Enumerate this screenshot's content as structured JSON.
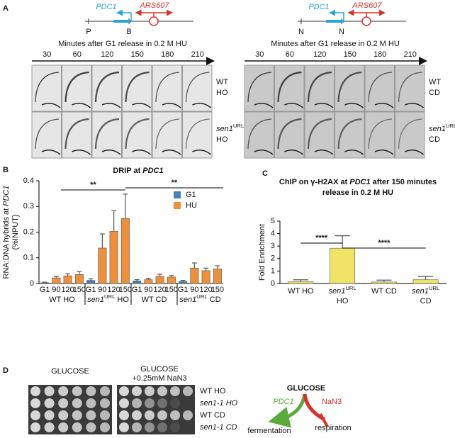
{
  "panel_a": {
    "label": "A",
    "gene": "PDC1",
    "origin": "ARS607",
    "axis_title": "Minutes after G1 release in 0.2 M HU",
    "times": [
      30,
      60,
      120,
      150,
      180,
      210
    ],
    "left": {
      "markers": [
        "P",
        "B"
      ],
      "rows": [
        [
          [
            "WT"
          ],
          [
            "HO"
          ]
        ],
        [
          [
            {
              "italic": "sen1"
            },
            {
              "sup": "URL"
            }
          ],
          [
            "HO"
          ]
        ]
      ]
    },
    "right": {
      "markers": [
        "N",
        "N"
      ],
      "rows": [
        [
          [
            "WT"
          ],
          [
            "CD"
          ]
        ],
        [
          [
            {
              "italic": "sen1"
            },
            {
              "sup": "URL"
            }
          ],
          [
            "CD"
          ]
        ]
      ]
    }
  },
  "chart_data": [
    {
      "type": "bar",
      "panel": "B",
      "title": [
        "DRIP  at",
        {
          "italic": "PDC1"
        }
      ],
      "y_label": [
        [
          "RNA:DNA hybrids at",
          {
            "italic": "PDC1"
          }
        ],
        [
          "(%INPUT)"
        ]
      ],
      "categories": [
        "G1",
        "90",
        "120",
        "150",
        "G1",
        "90",
        "120",
        "150",
        "G1",
        "90",
        "120",
        "150",
        "G1",
        "90",
        "120",
        "150"
      ],
      "groups": [
        "WT HO",
        [
          {
            "italic": "sen1"
          },
          {
            "sup": "URL"
          },
          "HO"
        ],
        "WT CD",
        [
          {
            "italic": "sen1"
          },
          {
            "sup": "URL"
          },
          "CD"
        ]
      ],
      "series": [
        {
          "name": "G1",
          "color": "#4a7fb5",
          "values": [
            0.003,
            null,
            null,
            null,
            0.012,
            null,
            null,
            null,
            0.01,
            null,
            null,
            null,
            0.008,
            null,
            null,
            null
          ],
          "errors": [
            0.002,
            null,
            null,
            null,
            0.006,
            null,
            null,
            null,
            0.005,
            null,
            null,
            null,
            0.004,
            null,
            null,
            null
          ]
        },
        {
          "name": "HU",
          "color": "#ee8f3a",
          "values": [
            null,
            0.022,
            0.03,
            0.035,
            null,
            0.138,
            0.203,
            0.253,
            null,
            0.015,
            0.028,
            0.025,
            null,
            0.06,
            0.05,
            0.057
          ],
          "errors": [
            null,
            0.006,
            0.008,
            0.012,
            null,
            0.055,
            0.08,
            0.095,
            null,
            0.005,
            0.008,
            0.006,
            null,
            0.02,
            0.01,
            0.012
          ]
        }
      ],
      "ylim": [
        0,
        0.4
      ],
      "yticks": [
        0,
        0.1,
        0.2,
        0.3,
        0.4
      ],
      "significance": [
        "**",
        "**"
      ]
    },
    {
      "type": "bar",
      "panel": "C",
      "title": [
        [
          "ChIP on γ-H2AX at",
          {
            "italic": "PDC1"
          },
          "after 150 minutes"
        ],
        [
          "release in 0.2 M HU"
        ]
      ],
      "y_label": "Fold Enrichment",
      "categories": [
        [
          "WT HO"
        ],
        [
          [
            {
              "italic": "sen1"
            },
            {
              "sup": "URL"
            }
          ],
          [
            "HO"
          ]
        ],
        [
          "WT CD"
        ],
        [
          [
            {
              "italic": "sen1"
            },
            {
              "sup": "URL"
            }
          ],
          [
            "CD"
          ]
        ]
      ],
      "values": [
        0.15,
        2.83,
        0.12,
        0.3
      ],
      "errors": [
        0.15,
        1.0,
        0.15,
        0.27
      ],
      "color": "#efe467",
      "ylim": [
        0,
        5
      ],
      "yticks": [
        0,
        1,
        2,
        3,
        4,
        5
      ],
      "significance": [
        "****",
        "****"
      ]
    }
  ],
  "panel_d": {
    "label": "D",
    "plates": [
      [
        "GLUCOSE"
      ],
      [
        "GLUCOSE",
        "+0.25mM NaN3"
      ]
    ],
    "rows": [
      "WT HO",
      [
        {
          "italic": "sen1-1 HO"
        }
      ],
      "WT CD",
      [
        {
          "italic": "sen1-1 CD"
        }
      ]
    ],
    "pathway": {
      "substrate": "GLUCOSE",
      "left": "PDC1",
      "right": "NaN3",
      "left_out": "fermentation",
      "right_out": "respiration"
    }
  }
}
